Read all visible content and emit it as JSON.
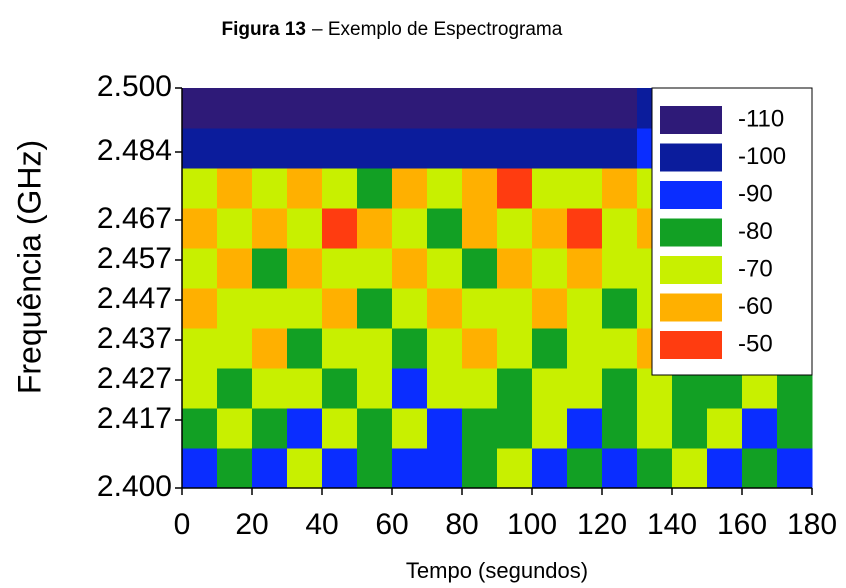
{
  "chart_data": {
    "type": "heatmap",
    "figure_label": "Figura 13",
    "title": "– Exemplo de Espectrograma",
    "x_label": "Tempo (segundos)",
    "y_label": "Frequência (GHz)",
    "xbins": [
      0,
      10,
      20,
      30,
      40,
      50,
      60,
      70,
      80,
      90,
      100,
      110,
      120,
      130,
      140,
      150,
      160,
      170,
      180
    ],
    "ybins": [
      2.4,
      2.41,
      2.42,
      2.43,
      2.44,
      2.45,
      2.46,
      2.47,
      2.48,
      2.49,
      2.5
    ],
    "values": [
      [
        -90,
        -80,
        -90,
        -70,
        -90,
        -80,
        -90,
        -90,
        -80,
        -70,
        -90,
        -80,
        -90,
        -80,
        -70,
        -90,
        -80,
        -90
      ],
      [
        -80,
        -70,
        -80,
        -90,
        -70,
        -80,
        -70,
        -90,
        -80,
        -80,
        -70,
        -90,
        -80,
        -70,
        -80,
        -70,
        -90,
        -80
      ],
      [
        -70,
        -80,
        -70,
        -70,
        -80,
        -70,
        -90,
        -70,
        -70,
        -80,
        -70,
        -70,
        -80,
        -70,
        -80,
        -80,
        -70,
        -80
      ],
      [
        -70,
        -70,
        -60,
        -80,
        -70,
        -70,
        -80,
        -70,
        -60,
        -70,
        -80,
        -70,
        -70,
        -60,
        -70,
        -80,
        -70,
        -70
      ],
      [
        -60,
        -70,
        -70,
        -70,
        -60,
        -80,
        -70,
        -60,
        -70,
        -70,
        -60,
        -70,
        -80,
        -70,
        -70,
        -70,
        -60,
        -70
      ],
      [
        -70,
        -60,
        -80,
        -60,
        -70,
        -70,
        -60,
        -70,
        -80,
        -60,
        -70,
        -60,
        -70,
        -70,
        -60,
        -70,
        -70,
        -80
      ],
      [
        -60,
        -70,
        -60,
        -70,
        -50,
        -60,
        -70,
        -80,
        -60,
        -70,
        -60,
        -50,
        -70,
        -60,
        -70,
        -60,
        -80,
        -70
      ],
      [
        -70,
        -60,
        -70,
        -60,
        -70,
        -80,
        -60,
        -70,
        -60,
        -50,
        -70,
        -70,
        -60,
        -70,
        -60,
        -70,
        -70,
        -60
      ],
      [
        -100,
        -100,
        -100,
        -100,
        -100,
        -100,
        -100,
        -100,
        -100,
        -100,
        -100,
        -100,
        -100,
        -90,
        -90,
        -90,
        -90,
        -90
      ],
      [
        -110,
        -110,
        -110,
        -110,
        -110,
        -110,
        -110,
        -110,
        -110,
        -110,
        -110,
        -110,
        -110,
        -100,
        -100,
        -100,
        -100,
        -100
      ]
    ],
    "levels": [
      -110,
      -100,
      -90,
      -80,
      -70,
      -60,
      -50
    ],
    "level_colors": [
      "#2e1a78",
      "#0b1c9c",
      "#0a2dff",
      "#12a024",
      "#c8f000",
      "#ffb000",
      "#ff3c10"
    ],
    "xlim": [
      0,
      180
    ],
    "xticks": [
      0,
      20,
      40,
      60,
      80,
      100,
      120,
      140,
      160,
      180
    ],
    "ylim": [
      2.4,
      2.5
    ],
    "yticks": [
      {
        "value": 2.4,
        "label": "2.400"
      },
      2.417,
      2.427,
      2.437,
      2.447,
      2.457,
      2.467,
      2.484,
      {
        "value": 2.5,
        "label": "2.500"
      }
    ],
    "legend_position": "upper right"
  }
}
